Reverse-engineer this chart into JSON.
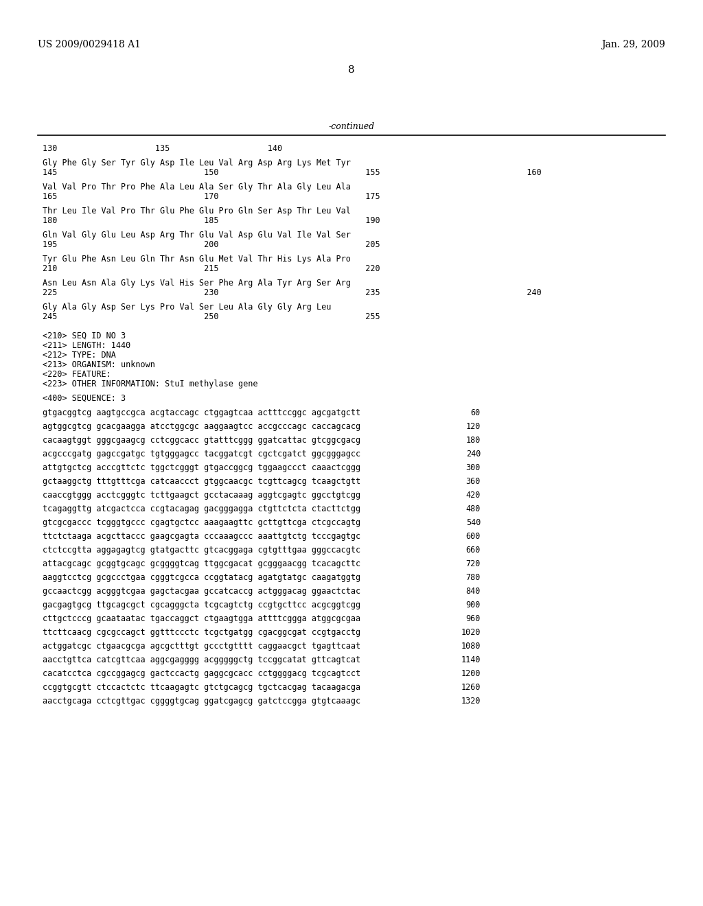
{
  "header_left": "US 2009/0029418 A1",
  "header_right": "Jan. 29, 2009",
  "page_number": "8",
  "continued_label": "-continued",
  "meta_section": [
    "<210> SEQ ID NO 3",
    "<211> LENGTH: 1440",
    "<212> TYPE: DNA",
    "<213> ORGANISM: unknown",
    "<220> FEATURE:",
    "<223> OTHER INFORMATION: StuI methylase gene",
    "",
    "<400> SEQUENCE: 3"
  ],
  "dna_sequences": [
    {
      "seq": "gtgacggtcg aagtgccgca acgtaccagc ctggagtcaa actttccggc agcgatgctt",
      "num": "60"
    },
    {
      "seq": "agtggcgtcg gcacgaagga atcctggcgc aaggaagtcc accgcccagc caccagcacg",
      "num": "120"
    },
    {
      "seq": "cacaagtggt gggcgaagcg cctcggcacc gtatttcggg ggatcattac gtcggcgacg",
      "num": "180"
    },
    {
      "seq": "acgcccgatg gagccgatgc tgtgggagcc tacggatcgt cgctcgatct ggcgggagcc",
      "num": "240"
    },
    {
      "seq": "attgtgctcg acccgttctc tggctcgggt gtgaccggcg tggaagccct caaactcggg",
      "num": "300"
    },
    {
      "seq": "gctaaggctg tttgtttcga catcaaccct gtggcaacgc tcgttcagcg tcaagctgtt",
      "num": "360"
    },
    {
      "seq": "caaccgtggg acctcgggtc tcttgaagct gcctacaaag aggtcgagtc ggcctgtcgg",
      "num": "420"
    },
    {
      "seq": "tcagaggttg atcgactcca ccgtacagag gacgggagga ctgttctcta ctacttctgg",
      "num": "480"
    },
    {
      "seq": "gtcgcgaccc tcgggtgccc cgagtgctcc aaagaagttc gcttgttcga ctcgccagtg",
      "num": "540"
    },
    {
      "seq": "ttctctaaga acgcttaccc gaagcgagta cccaaagccc aaattgtctg tcccgagtgc",
      "num": "600"
    },
    {
      "seq": "ctctccgtta aggagagtcg gtatgacttc gtcacggaga cgtgtttgaa gggccacgtc",
      "num": "660"
    },
    {
      "seq": "attacgcagc gcggtgcagc gcggggtcag ttggcgacat gcgggaacgg tcacagcttc",
      "num": "720"
    },
    {
      "seq": "aaggtcctcg gcgccctgaa cgggtcgcca ccggtatacg agatgtatgc caagatggtg",
      "num": "780"
    },
    {
      "seq": "gccaactcgg acgggtcgaa gagctacgaa gccatcaccg actgggacag ggaactctac",
      "num": "840"
    },
    {
      "seq": "gacgagtgcg ttgcagcgct cgcagggcta tcgcagtctg ccgtgcttcc acgcggtcgg",
      "num": "900"
    },
    {
      "seq": "cttgctcccg gcaataatac tgaccaggct ctgaagtgga attttcggga atggcgcgaa",
      "num": "960"
    },
    {
      "seq": "ttcttcaacg cgcgccagct ggtttccctc tcgctgatgg cgacggcgat ccgtgacctg",
      "num": "1020"
    },
    {
      "seq": "actggatcgc ctgaacgcga agcgctttgt gccctgtttt caggaacgct tgagttcaat",
      "num": "1080"
    },
    {
      "seq": "aacctgttca catcgttcaa aggcgagggg acgggggctg tccggcatat gttcagtcat",
      "num": "1140"
    },
    {
      "seq": "cacatcctca cgccggagcg gactccactg gaggcgcacc cctggggacg tcgcagtcct",
      "num": "1200"
    },
    {
      "seq": "ccggtgcgtt ctccactctc ttcaagagtc gtctgcagcg tgctcacgag tacaagacga",
      "num": "1260"
    },
    {
      "seq": "aacctgcaga cctcgttgac cggggtgcag ggatcgagcg gatctccgga gtgtcaaagc",
      "num": "1320"
    }
  ],
  "aa_blocks": [
    {
      "seq": "Gly Phe Gly Ser Tyr Gly Asp Ile Leu Val Arg Asp Arg Lys Met Tyr",
      "nums": "145                              150                              155                              160"
    },
    {
      "seq": "Val Val Pro Thr Pro Phe Ala Leu Ala Ser Gly Thr Ala Gly Leu Ala",
      "nums": "165                              170                              175"
    },
    {
      "seq": "Thr Leu Ile Val Pro Thr Glu Phe Glu Pro Gln Ser Asp Thr Leu Val",
      "nums": "180                              185                              190"
    },
    {
      "seq": "Gln Val Gly Glu Leu Asp Arg Thr Glu Val Asp Glu Val Ile Val Ser",
      "nums": "195                              200                              205"
    },
    {
      "seq": "Tyr Glu Phe Asn Leu Gln Thr Asn Glu Met Val Thr His Lys Ala Pro",
      "nums": "210                              215                              220"
    },
    {
      "seq": "Asn Leu Asn Ala Gly Lys Val His Ser Phe Arg Ala Tyr Arg Ser Arg",
      "nums": "225                              230                              235                              240"
    },
    {
      "seq": "Gly Ala Gly Asp Ser Lys Pro Val Ser Leu Ala Gly Gly Arg Leu",
      "nums": "245                              250                              255"
    }
  ]
}
